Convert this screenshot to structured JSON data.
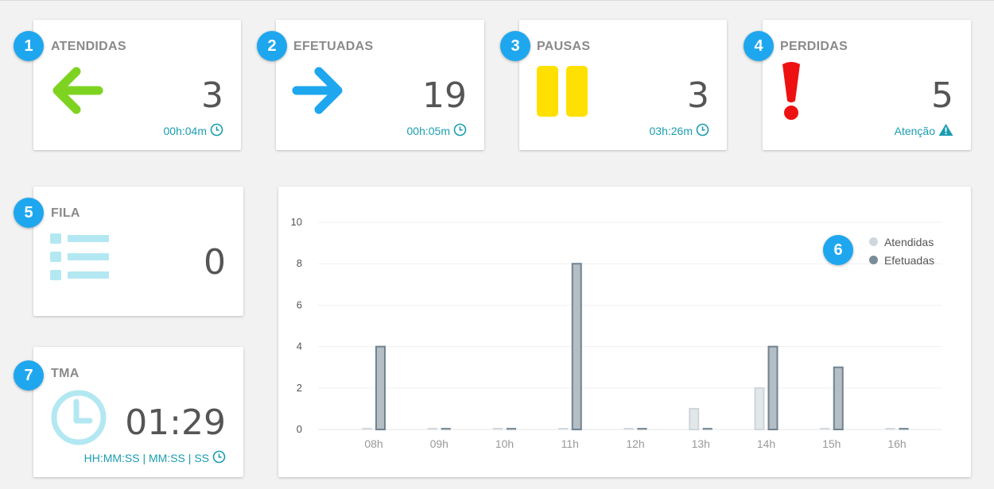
{
  "cards": {
    "atendidas": {
      "badge": "1",
      "title": "ATENDIDAS",
      "value": "3",
      "footer": "00h:04m",
      "icon": "arrow-left-icon",
      "color": "#7ed321"
    },
    "efetuadas": {
      "badge": "2",
      "title": "EFETUADAS",
      "value": "19",
      "footer": "00h:05m",
      "icon": "arrow-right-icon",
      "color": "#1ea7ef"
    },
    "pausas": {
      "badge": "3",
      "title": "PAUSAS",
      "value": "3",
      "footer": "03h:26m",
      "icon": "pause-icon",
      "color": "#ffe000"
    },
    "perdidas": {
      "badge": "4",
      "title": "PERDIDAS",
      "value": "5",
      "footer": "Atenção",
      "icon": "exclamation-icon",
      "color": "#ee1111"
    },
    "fila": {
      "badge": "5",
      "title": "FILA",
      "value": "0",
      "icon": "list-icon",
      "color": "#b3e8f2"
    },
    "tma": {
      "badge": "7",
      "title": "TMA",
      "value": "01:29",
      "footer": "HH:MM:SS | MM:SS | SS",
      "icon": "clock-icon",
      "color": "#b3e8f2"
    }
  },
  "chart_badge": "6",
  "accent_color": "#1a9db0",
  "chart_data": {
    "type": "bar",
    "categories": [
      "08h",
      "09h",
      "10h",
      "11h",
      "12h",
      "13h",
      "14h",
      "15h",
      "16h"
    ],
    "series": [
      {
        "name": "Atendidas",
        "values": [
          0,
          0,
          0,
          0,
          0,
          1,
          2,
          0,
          0
        ],
        "color": "#e2e7ea"
      },
      {
        "name": "Efetuadas",
        "values": [
          4,
          0,
          0,
          8,
          0,
          0,
          4,
          3,
          0
        ],
        "color": "#b4bec4"
      }
    ],
    "ylim": [
      0,
      10
    ],
    "yticks": [
      0,
      2,
      4,
      6,
      8,
      10
    ],
    "legend": "top-right",
    "grid": true
  }
}
